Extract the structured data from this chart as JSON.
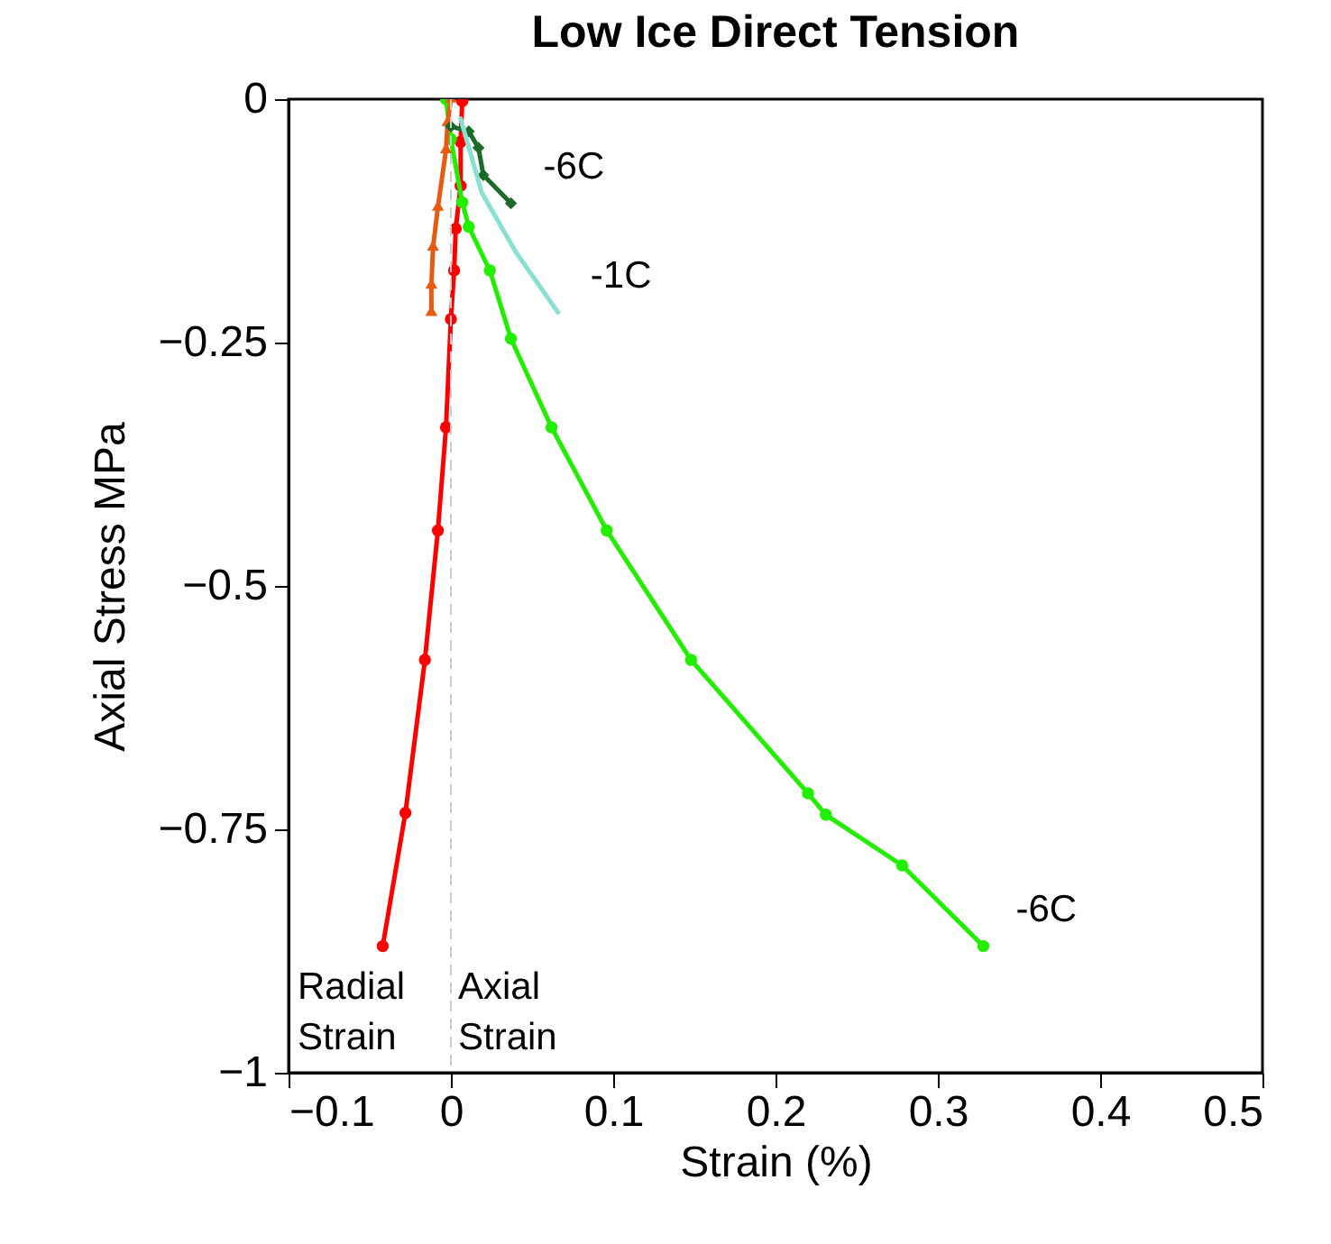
{
  "chart_data": {
    "type": "line",
    "title": "Low Ice Direct Tension",
    "xlabel": "Strain (%)",
    "ylabel": "Axial Stress MPa",
    "xlim": [
      -0.1,
      0.5
    ],
    "xticks": [
      -0.1,
      0,
      0.1,
      0.2,
      0.3,
      0.4,
      0.5
    ],
    "ylim": [
      -1,
      0
    ],
    "yticks": [
      -1,
      -0.75,
      -0.5,
      -0.25,
      0
    ],
    "grid": false,
    "series": [
      {
        "color": "#ff0000",
        "marker": "circle",
        "x": [
          0.007,
          0.006,
          0.006,
          0.003,
          0.002,
          0,
          -0.003,
          -0.008,
          -0.016,
          -0.028,
          -0.042
        ],
        "values": [
          -0.002,
          -0.044,
          -0.089,
          -0.133,
          -0.176,
          -0.226,
          -0.337,
          -0.443,
          -0.576,
          -0.733,
          -0.87
        ]
      },
      {
        "name": "-6C",
        "color": "#22ee00",
        "marker": "circle",
        "x": [
          -0.003,
          0,
          0.007,
          0.011,
          0.024,
          0.037,
          0.062,
          0.096,
          0.148,
          0.22,
          0.231,
          0.278,
          0.328
        ],
        "values": [
          0,
          -0.041,
          -0.106,
          -0.131,
          -0.176,
          -0.246,
          -0.337,
          -0.443,
          -0.576,
          -0.713,
          -0.735,
          -0.787,
          -0.87
        ]
      },
      {
        "color": "#e85a10",
        "marker": "triangle",
        "x": [
          0,
          -0.002,
          -0.003,
          -0.008,
          -0.011,
          -0.012,
          -0.012
        ],
        "values": [
          0,
          -0.024,
          -0.052,
          -0.111,
          -0.152,
          -0.191,
          -0.219
        ]
      },
      {
        "name": "-6C",
        "color": "#1a6b2a",
        "marker": "diamond",
        "x": [
          0,
          0.011,
          0.017,
          0.02,
          0.037
        ],
        "values": [
          -0.028,
          -0.033,
          -0.05,
          -0.078,
          -0.107
        ]
      },
      {
        "name": "-1C",
        "color": "#88e0d0",
        "marker": "none",
        "x": [
          0.006,
          0.019,
          0.04,
          0.066
        ],
        "values": [
          -0.02,
          -0.096,
          -0.157,
          -0.219
        ]
      }
    ],
    "ref_lines": [
      {
        "axis": "x",
        "value": 0,
        "color": "#cccccc",
        "line_style": "dashed"
      }
    ],
    "annotations": [
      "Radial Strain",
      "Axial Strain"
    ]
  }
}
